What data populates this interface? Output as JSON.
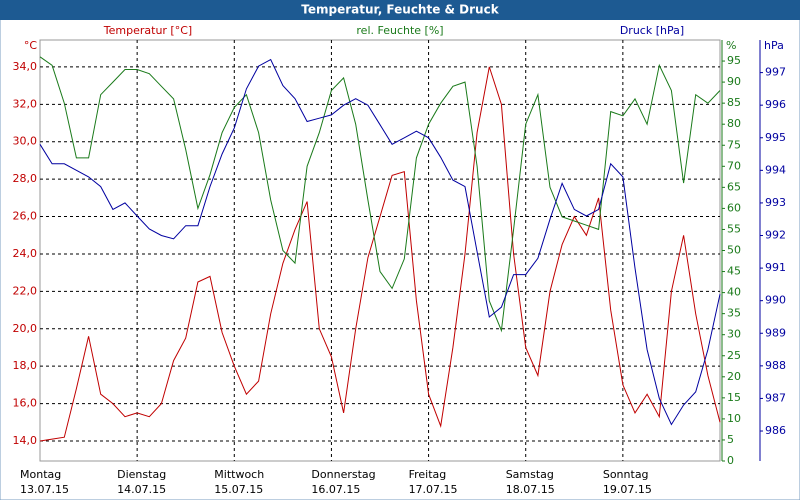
{
  "chart_data": {
    "type": "line",
    "title": "Temperatur, Feuchte & Druck",
    "y_axis_label": "Temperatur [°C]",
    "y_unit": "°C",
    "y2_axis_label": "rel. Feuchte [%]",
    "y2_unit": "%",
    "y3_axis_label": "Druck [hPa]",
    "y3_unit": "hPa",
    "categories": [
      "Montag",
      null,
      null,
      null,
      null,
      null,
      null,
      null,
      "Dienstag",
      null,
      null,
      null,
      null,
      null,
      null,
      null,
      "Mittwoch",
      null,
      null,
      null,
      null,
      null,
      null,
      null,
      "Donnerstag",
      null,
      null,
      null,
      null,
      null,
      null,
      null,
      "Freitag",
      null,
      null,
      null,
      null,
      null,
      null,
      null,
      "Samstag",
      null,
      null,
      null,
      null,
      null,
      null,
      null,
      "Sonntag",
      null,
      null,
      null,
      null,
      null,
      null,
      null,
      null
    ],
    "category_dates": [
      "13.07.15",
      null,
      null,
      null,
      null,
      null,
      null,
      null,
      "14.07.15",
      null,
      null,
      null,
      null,
      null,
      null,
      null,
      "15.07.15",
      null,
      null,
      null,
      null,
      null,
      null,
      null,
      "16.07.15",
      null,
      null,
      null,
      null,
      null,
      null,
      null,
      "17.07.15",
      null,
      null,
      null,
      null,
      null,
      null,
      null,
      "18.07.15",
      null,
      null,
      null,
      null,
      null,
      null,
      null,
      "19.07.15",
      null,
      null,
      null,
      null,
      null,
      null,
      null,
      null
    ],
    "ylim": [
      12.93,
      35.44
    ],
    "yticks": [
      {
        "value": 14,
        "label": "14,0"
      },
      {
        "value": 16,
        "label": "16,0"
      },
      {
        "value": 18,
        "label": "18,0"
      },
      {
        "value": 20,
        "label": "20,0"
      },
      {
        "value": 22,
        "label": "22,0"
      },
      {
        "value": 24,
        "label": "24,0"
      },
      {
        "value": 26,
        "label": "26,0"
      },
      {
        "value": 28,
        "label": "28,0"
      },
      {
        "value": 30,
        "label": "30,0"
      },
      {
        "value": 32,
        "label": "32,0"
      },
      {
        "value": 34,
        "label": "34,0"
      }
    ],
    "y2lim": [
      0,
      100
    ],
    "y2ticks": [
      0,
      5,
      10,
      15,
      20,
      25,
      30,
      35,
      40,
      45,
      50,
      55,
      60,
      65,
      70,
      75,
      80,
      85,
      90,
      95
    ],
    "y3lim": [
      985.08,
      998
    ],
    "y3ticks": [
      986,
      987,
      988,
      989,
      990,
      991,
      992,
      993,
      994,
      995,
      996,
      997
    ],
    "grid": true,
    "series": [
      {
        "name": "Temperatur",
        "color": "#c00000",
        "axis": "y",
        "values": [
          14.0,
          14.1,
          14.2,
          16.8,
          19.6,
          16.5,
          16.0,
          15.3,
          15.5,
          15.3,
          16.0,
          18.3,
          19.5,
          22.5,
          22.8,
          19.8,
          18.0,
          16.5,
          17.2,
          20.8,
          23.5,
          25.3,
          26.8,
          20.0,
          18.5,
          15.5,
          20.0,
          23.8,
          26.0,
          28.2,
          28.4,
          21.5,
          16.5,
          14.8,
          19.0,
          24.0,
          30.5,
          34.0,
          32.0,
          24.0,
          19.0,
          17.5,
          22.0,
          24.5,
          26.0,
          25.0,
          27.0,
          21.0,
          17.0,
          15.5,
          16.5,
          15.3,
          22.0,
          25.0,
          20.8,
          17.5,
          15.0
        ]
      },
      {
        "name": "rel. Feuchte",
        "color": "#1a7a1a",
        "axis": "y2",
        "values": [
          96,
          94,
          85,
          72,
          72,
          87,
          90,
          93,
          93,
          92,
          89,
          86,
          74,
          60,
          68,
          78,
          84,
          87,
          78,
          62,
          50,
          47,
          70,
          78,
          88,
          91,
          80,
          62,
          45,
          41,
          48,
          72,
          80,
          85,
          89,
          90,
          70,
          38,
          31,
          55,
          80,
          87,
          65,
          58,
          57,
          56,
          55,
          83,
          82,
          86,
          80,
          94,
          88,
          66,
          87,
          85,
          88
        ]
      },
      {
        "name": "Druck",
        "color": "#0000a0",
        "axis": "y3",
        "values": [
          994.8,
          994.2,
          994.2,
          994.0,
          993.8,
          993.5,
          992.8,
          993.0,
          992.6,
          992.2,
          992.0,
          991.9,
          992.3,
          992.3,
          993.5,
          994.5,
          995.3,
          996.5,
          997.2,
          997.4,
          996.6,
          996.2,
          995.5,
          995.6,
          995.7,
          996.0,
          996.2,
          996.0,
          995.4,
          994.8,
          995.0,
          995.2,
          995.0,
          994.4,
          993.7,
          993.5,
          991.5,
          989.5,
          989.8,
          990.8,
          990.8,
          991.3,
          992.5,
          993.6,
          992.8,
          992.6,
          992.8,
          994.2,
          993.8,
          991.0,
          988.5,
          987.0,
          986.2,
          986.8,
          987.2,
          988.5,
          990.2
        ]
      }
    ]
  }
}
